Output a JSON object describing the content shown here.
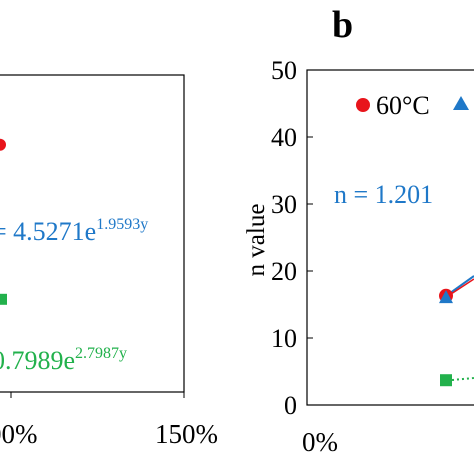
{
  "chart_data": [
    {
      "type": "scatter",
      "panel": "a (cropped)",
      "x_tick_labels": [
        "00%",
        "150%"
      ],
      "equations": [
        {
          "text": "= 4.5271e",
          "exponent": "1.9593y",
          "color": "#1f78c8"
        },
        {
          "text": "0.7989e",
          "exponent": "2.7987y",
          "color": "#22b14c"
        }
      ],
      "series": [
        {
          "marker": "circle",
          "color": "#e8141b",
          "points": [
            {
              "y": 39
            }
          ]
        },
        {
          "marker": "square",
          "color": "#22b14c",
          "points": [
            {
              "y": 14.7
            }
          ]
        }
      ],
      "ylim": [
        0,
        50
      ]
    },
    {
      "type": "scatter",
      "panel_label": "b",
      "ylabel": "n value",
      "y_ticks": [
        "0",
        "10",
        "20",
        "30",
        "40",
        "50"
      ],
      "ylim": [
        0,
        50
      ],
      "x_tick_labels": [
        "0%"
      ],
      "legend": {
        "placement": "top-right",
        "entries": [
          {
            "label": "60°C",
            "marker": "circle",
            "color": "#e8141b"
          },
          {
            "label": "",
            "marker": "triangle",
            "color": "#1f78c8"
          }
        ]
      },
      "equation": {
        "text": "n = 1.201",
        "color": "#1f78c8"
      },
      "series": [
        {
          "marker": "circle",
          "color": "#e8141b",
          "points": [
            {
              "y": 16.3
            }
          ]
        },
        {
          "marker": "triangle",
          "color": "#1f78c8",
          "points": [
            {
              "y": 16.1
            }
          ]
        },
        {
          "marker": "square",
          "color": "#22b14c",
          "points": [
            {
              "y": 3.7
            }
          ]
        }
      ]
    }
  ]
}
